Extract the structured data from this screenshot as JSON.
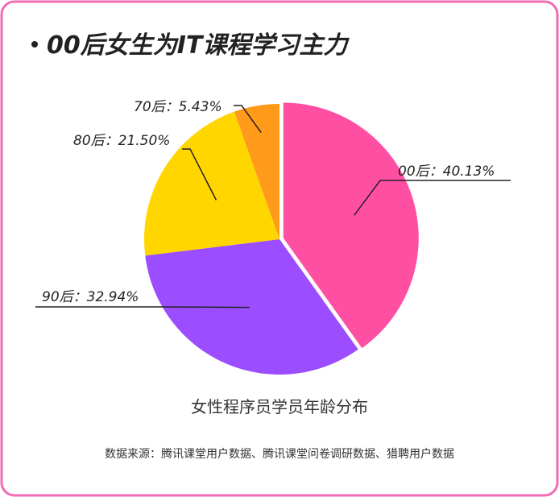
{
  "chart_data": {
    "type": "pie",
    "title": "00后女生为IT课程学习主力",
    "subtitle": "女性程序员学员年龄分布",
    "source": "数据来源：腾讯课堂用户数据、腾讯课堂问卷调研数据、猎聘用户数据",
    "categories": [
      "00后",
      "90后",
      "80后",
      "70后"
    ],
    "values": [
      40.13,
      32.94,
      21.5,
      5.43
    ],
    "value_labels": [
      "40.13%",
      "32.94%",
      "21.50%",
      "5.43%"
    ],
    "label_separator": "：",
    "colors": [
      "#ff4fa3",
      "#9b4dff",
      "#ffd600",
      "#ff9a1a"
    ]
  }
}
